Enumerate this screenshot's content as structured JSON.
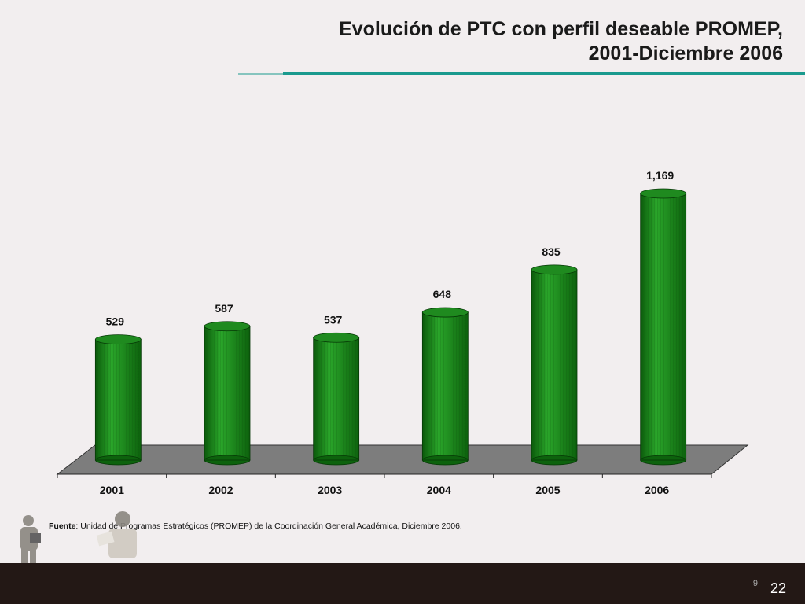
{
  "title": {
    "line1": "Evolución de PTC con perfil deseable PROMEP,",
    "line2": "2001-Diciembre 2006"
  },
  "colors": {
    "accent_rule": "#1a9a8e",
    "bar_fill": "#1f8a1f",
    "bar_dark": "#0f5e0f",
    "floor": "#7d7d7d",
    "footer": "#231815"
  },
  "chart_data": {
    "type": "bar",
    "categories": [
      "2001",
      "2002",
      "2003",
      "2004",
      "2005",
      "2006"
    ],
    "values": [
      529,
      587,
      537,
      648,
      835,
      1169
    ],
    "value_labels": [
      "529",
      "587",
      "537",
      "648",
      "835",
      "1,169"
    ],
    "style": "3d-cylinder",
    "grid": false,
    "legend": "none"
  },
  "source": {
    "label": "Fuente",
    "text": ": Unidad de Programas Estratégicos (PROMEP) de la Coordinación General Académica, Diciembre 2006."
  },
  "footer": {
    "page_small": "9",
    "page": "22"
  }
}
